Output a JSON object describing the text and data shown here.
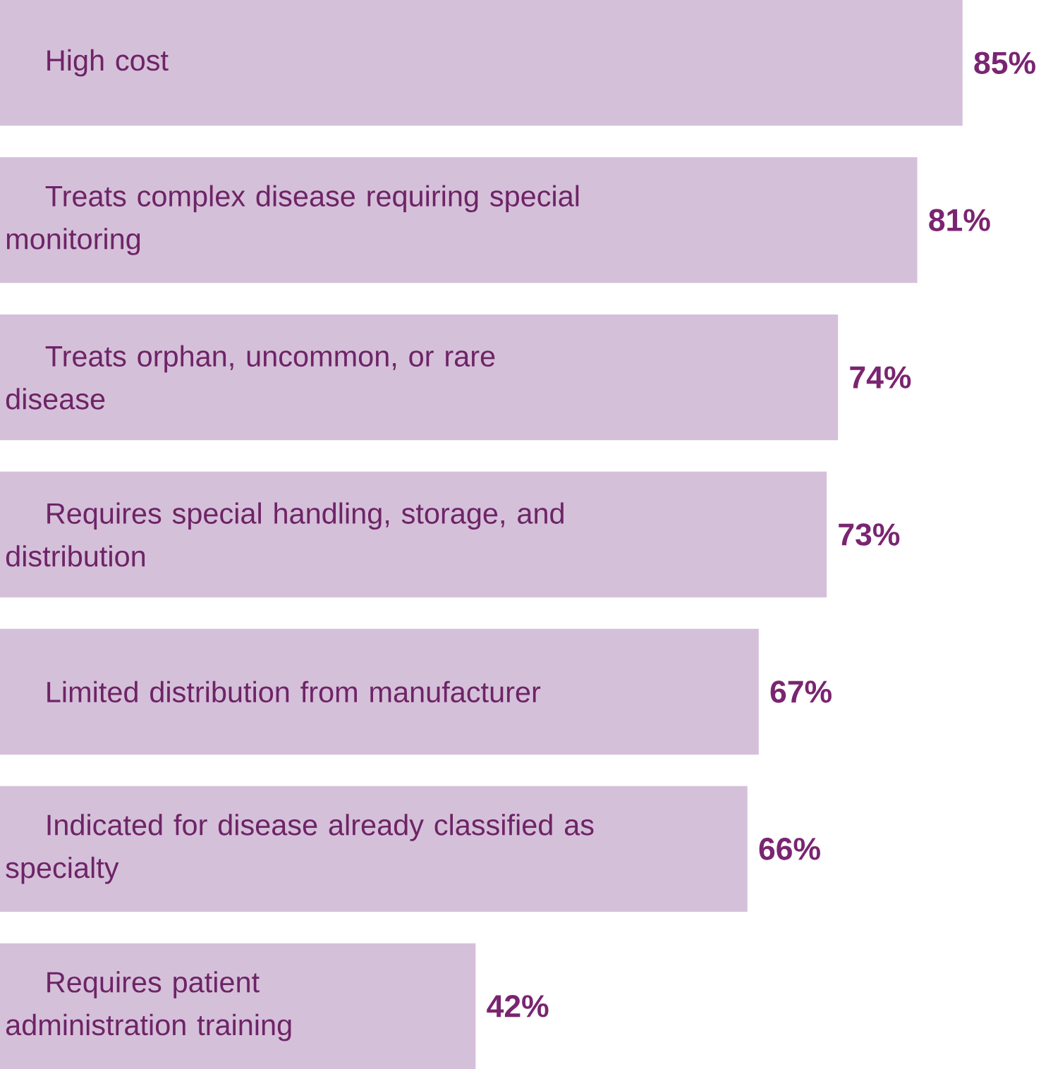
{
  "chart_data": {
    "type": "bar",
    "orientation": "horizontal",
    "categories": [
      "High cost",
      "Treats complex disease requiring special monitoring",
      "Treats orphan, uncommon, or rare disease",
      "Requires special handling, storage, and distribution",
      "Limited distribution from manufacturer",
      "Indicated for disease already classified as specialty",
      "Requires patient administration training"
    ],
    "values": [
      85,
      81,
      74,
      73,
      67,
      66,
      42
    ],
    "value_labels": [
      "85%",
      "81%",
      "74%",
      "73%",
      "67%",
      "66%",
      "42%"
    ],
    "color": "#d5c0da"
  }
}
